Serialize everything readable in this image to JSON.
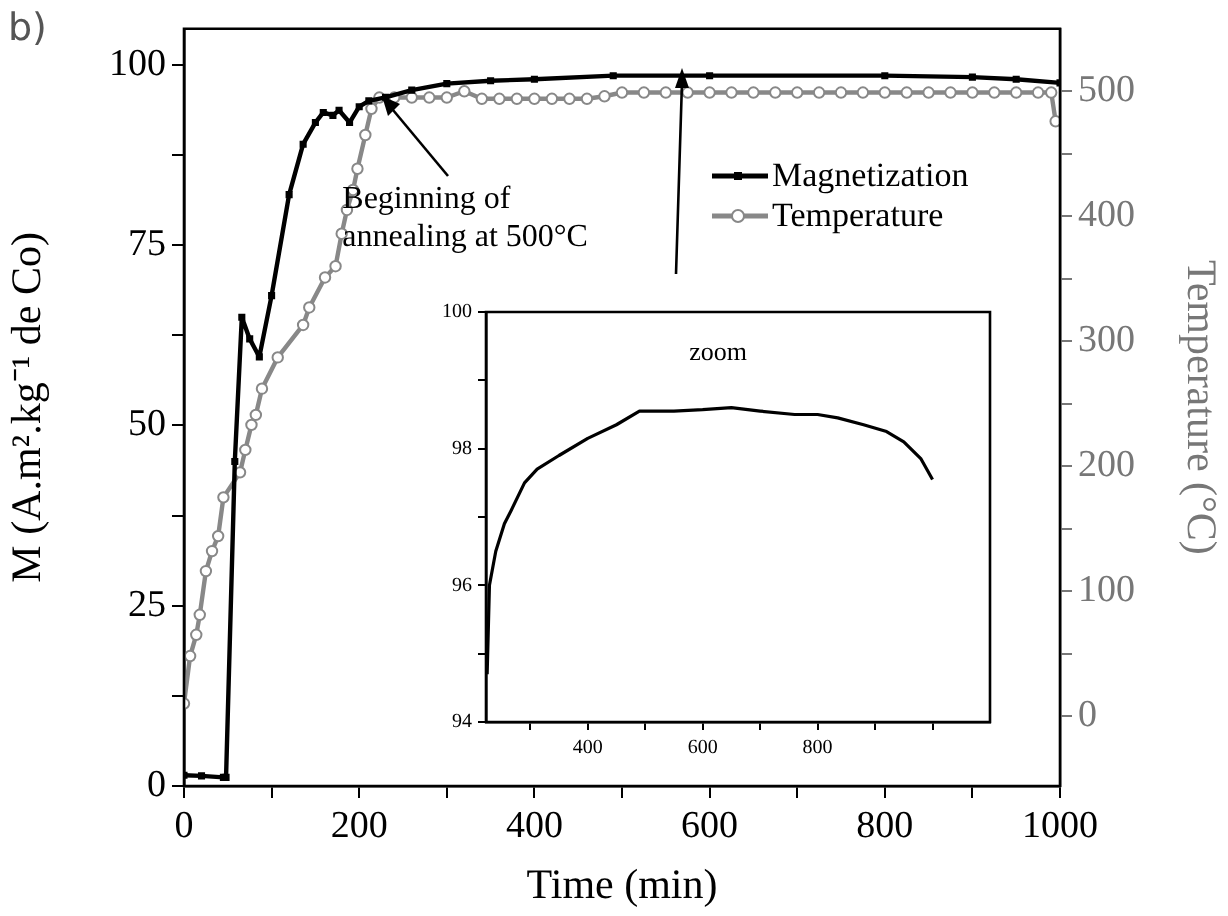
{
  "chart_data": [
    {
      "type": "line",
      "xlabel": "Time (min)",
      "ylabel": "M (A.m².kg⁻¹ de Co)",
      "y2label": "Temperature (°C)",
      "xlim": [
        0,
        1000
      ],
      "xticks": [
        0,
        {
          "value": 100,
          "label": null
        },
        200,
        {
          "value": 300,
          "label": null
        },
        400,
        {
          "value": 500,
          "label": null
        },
        600,
        {
          "value": 700,
          "label": null
        },
        800,
        {
          "value": 900,
          "label": null
        },
        1000
      ],
      "ylim": [
        0,
        105
      ],
      "yticks": [
        0,
        {
          "value": 12.5,
          "label": null
        },
        25,
        {
          "value": 37.5,
          "label": null
        },
        50,
        {
          "value": 62.5,
          "label": null
        },
        75,
        {
          "value": 87.5,
          "label": null
        },
        100
      ],
      "y2lim": [
        -56,
        550
      ],
      "y2ticks": [
        0,
        {
          "value": 50,
          "label": null
        },
        100,
        {
          "value": 150,
          "label": null
        },
        200,
        {
          "value": 250,
          "label": null
        },
        300,
        {
          "value": 350,
          "label": null
        },
        400,
        {
          "value": 450,
          "label": null
        },
        500
      ],
      "grid": false,
      "legend": "top right",
      "annotations": [
        "b)",
        {
          "text": "Beginning of annealing at 500°C",
          "x": 215,
          "y": 95
        }
      ],
      "series": [
        {
          "name": "Magnetization",
          "color": "#000000",
          "marker": "square",
          "x": [
            0,
            20,
            45,
            48,
            58,
            66,
            75,
            86,
            100,
            120,
            136,
            150,
            159,
            170,
            177,
            189,
            200,
            211,
            230,
            260,
            300,
            350,
            400,
            490,
            600,
            800,
            900,
            950,
            1000
          ],
          "values": [
            1.5,
            1.4,
            1.2,
            1.2,
            45,
            65,
            62,
            59.5,
            68,
            82,
            89,
            92,
            93.4,
            93,
            93.7,
            92,
            94.2,
            95,
            95.5,
            96.5,
            97.4,
            97.8,
            98,
            98.5,
            98.5,
            98.5,
            98.3,
            98,
            97.5
          ]
        },
        {
          "name": "Temperature",
          "color": "#888888",
          "marker": "circle",
          "axis": "y2",
          "x": [
            0,
            7,
            14,
            18,
            25,
            32,
            39,
            45,
            64,
            70,
            77,
            82,
            89,
            107,
            136,
            143,
            161,
            173,
            180,
            186,
            193,
            198,
            207,
            214,
            223,
            240,
            260,
            280,
            300,
            320,
            340,
            360,
            380,
            400,
            420,
            440,
            460,
            480,
            500,
            525,
            550,
            575,
            600,
            625,
            650,
            675,
            700,
            725,
            750,
            775,
            800,
            825,
            850,
            875,
            900,
            925,
            950,
            975,
            990,
            995
          ],
          "values": [
            10,
            48,
            65,
            81,
            116,
            132,
            144,
            175,
            195,
            213,
            233,
            241,
            262,
            287,
            313,
            327,
            351,
            360,
            386,
            405,
            421,
            438,
            465,
            486,
            495,
            495,
            495,
            495,
            495,
            500,
            494,
            494,
            494,
            494,
            494,
            494,
            494,
            496,
            499,
            499,
            499,
            499,
            499,
            499,
            499,
            499,
            499,
            499,
            499,
            499,
            499,
            499,
            499,
            499,
            499,
            499,
            499,
            499,
            499,
            476
          ]
        }
      ]
    },
    {
      "type": "line",
      "title": "zoom",
      "xlim": [
        223,
        1100
      ],
      "xticks": [
        {
          "value": 300,
          "label": null
        },
        400,
        {
          "value": 500,
          "label": null
        },
        600,
        {
          "value": 700,
          "label": null
        },
        800,
        {
          "value": 900,
          "label": null
        },
        {
          "value": 1000,
          "label": null
        }
      ],
      "ylim": [
        94,
        100
      ],
      "yticks": [
        94,
        {
          "value": 95,
          "label": null
        },
        96,
        {
          "value": 97,
          "label": null
        },
        98,
        {
          "value": 99,
          "label": null
        },
        100
      ],
      "grid": false,
      "series": [
        {
          "color": "#000000",
          "marker": "none",
          "x": [
            225,
            229,
            240,
            255,
            267,
            290,
            312,
            350,
            400,
            450,
            490,
            550,
            600,
            650,
            700,
            760,
            800,
            835,
            880,
            920,
            950,
            980,
            1000
          ],
          "values": [
            94.7,
            96,
            96.5,
            96.9,
            97.1,
            97.5,
            97.7,
            97.9,
            98.15,
            98.35,
            98.55,
            98.55,
            98.57,
            98.6,
            98.55,
            98.5,
            98.5,
            98.45,
            98.35,
            98.25,
            98.1,
            97.85,
            97.55
          ]
        }
      ]
    }
  ]
}
